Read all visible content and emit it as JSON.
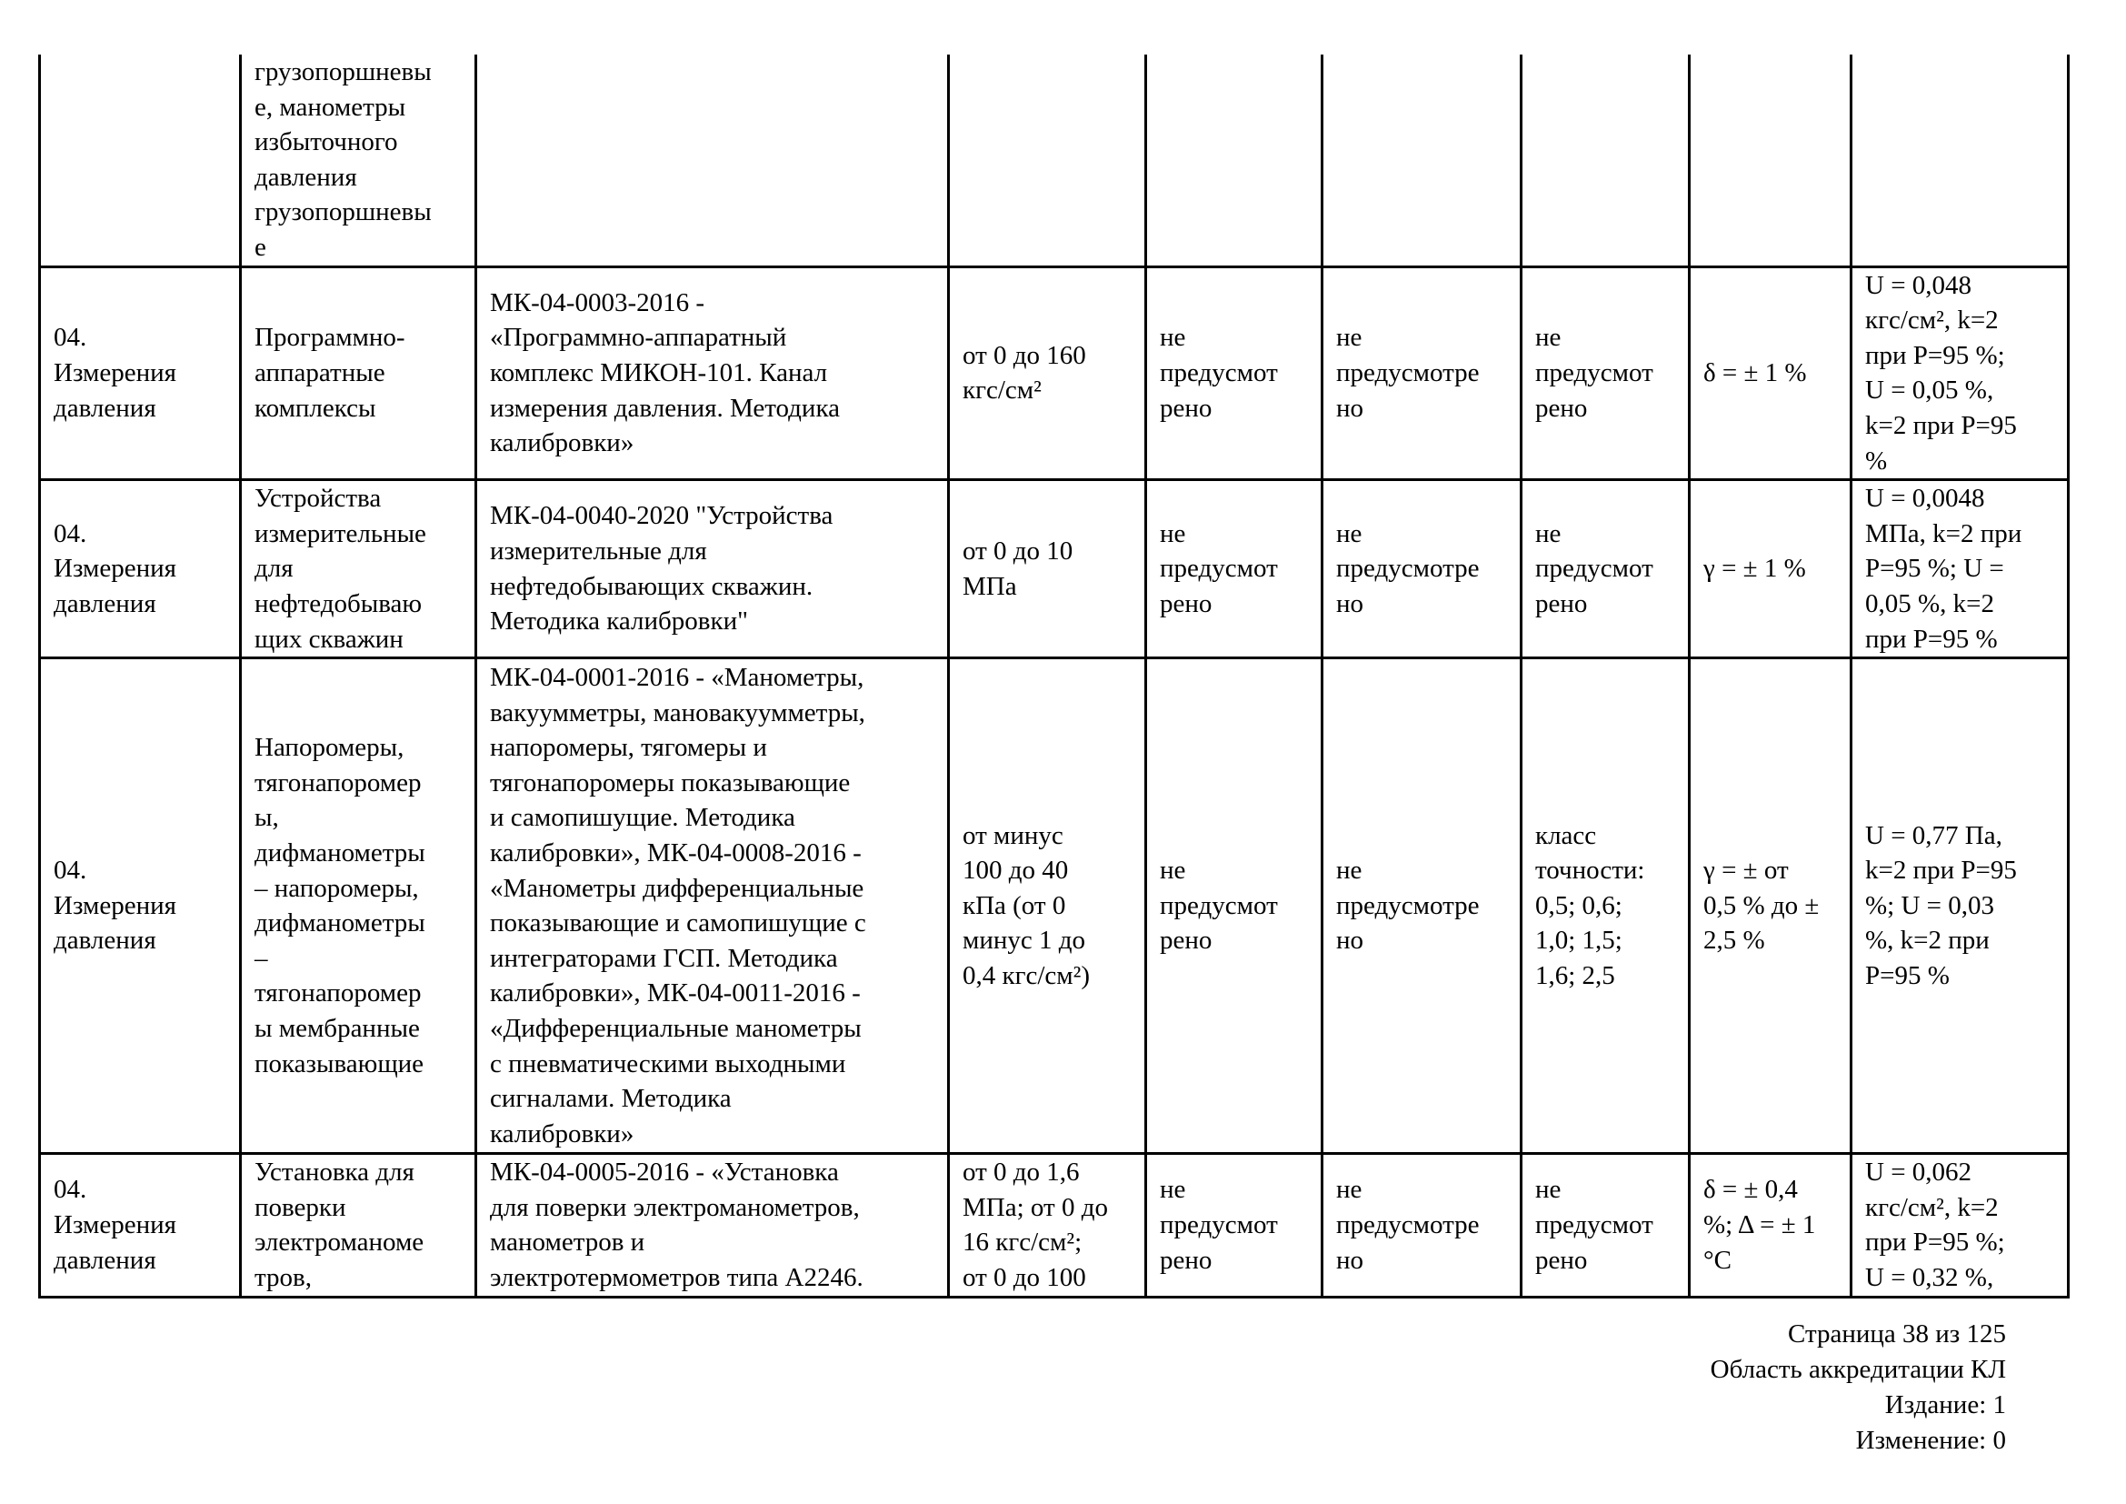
{
  "table": {
    "rows": [
      {
        "cells": [
          "",
          "грузопоршневы\nе, манометры\nизбыточного\nдавления\nгрузопоршневы\nе",
          "",
          "",
          "",
          "",
          "",
          "",
          ""
        ]
      },
      {
        "cells": [
          "04.\nИзмерения\nдавления",
          "Программно-\nаппаратные\nкомплексы",
          "МК-04-0003-2016 -\n«Программно-аппаратный\nкомплекс МИКОН-101. Канал\nизмерения давления. Методика\nкалибровки»",
          "от 0 до 160\nкгс/см²",
          "не\nпредусмот\nрено",
          "не\nпредусмотре\nно",
          "не\nпредусмот\nрено",
          "δ = ± 1 %",
          "U = 0,048\nкгс/см², k=2\nпри P=95 %;\nU = 0,05 %,\nk=2 при P=95\n%"
        ]
      },
      {
        "cells": [
          "04.\nИзмерения\nдавления",
          "Устройства\nизмерительные\nдля\nнефтедобываю\nщих скважин",
          "МК-04-0040-2020 \"Устройства\nизмерительные для\nнефтедобывающих скважин.\nМетодика калибровки\"",
          "от 0 до 10\nМПа",
          "не\nпредусмот\nрено",
          "не\nпредусмотре\nно",
          "не\nпредусмот\nрено",
          "γ = ± 1 %",
          "U = 0,0048\nМПа, k=2 при\nP=95 %; U =\n0,05 %, k=2\nпри P=95 %"
        ]
      },
      {
        "cells": [
          "04.\nИзмерения\nдавления",
          "Напоромеры,\nтягонапоромер\nы,\nдифманометры\n– напоромеры,\nдифманометры\n–\nтягонапоромер\nы мембранные\nпоказывающие",
          "МК-04-0001-2016 - «Манометры,\nвакуумметры, мановакуумметры,\nнапоромеры, тягомеры и\nтягонапоромеры показывающие\nи самопишущие. Методика\nкалибровки», МК-04-0008-2016 -\n«Манометры дифференциальные\nпоказывающие и самопишущие с\nинтеграторами ГСП. Методика\nкалибровки», МК-04-0011-2016 -\n«Дифференциальные манометры\nс пневматическими выходными\nсигналами. Методика\nкалибровки»",
          "от минус\n100 до 40\nкПа (от 0\nминус 1 до\n0,4 кгс/см²)",
          "не\nпредусмот\nрено",
          "не\nпредусмотре\nно",
          "класс\nточности:\n0,5; 0,6;\n1,0; 1,5;\n1,6; 2,5",
          "γ = ± от\n0,5 % до ±\n2,5 %",
          "U = 0,77 Па,\nk=2 при P=95\n%; U = 0,03\n%, k=2 при\nP=95 %"
        ]
      },
      {
        "cells": [
          "04.\nИзмерения\nдавления",
          "Установка для\nповерки\nэлектроманоме\nтров,",
          "МК-04-0005-2016 - «Установка\nдля поверки электроманометров,\nманометров и\nэлектротермометров типа А2246.",
          "от 0 до 1,6\nМПа; от 0 до\n16 кгс/см²;\nот 0 до 100",
          "не\nпредусмот\nрено",
          "не\nпредусмотре\nно",
          "не\nпредусмот\nрено",
          "δ = ± 0,4\n%; Δ = ± 1\n°С",
          "U = 0,062\nкгс/см², k=2\nпри P=95 %;\nU = 0,32 %,"
        ]
      }
    ]
  },
  "footer": {
    "page": "Страница 38 из 125",
    "scope": "Область аккредитации КЛ",
    "edition": "Издание: 1",
    "change": "Изменение: 0"
  }
}
